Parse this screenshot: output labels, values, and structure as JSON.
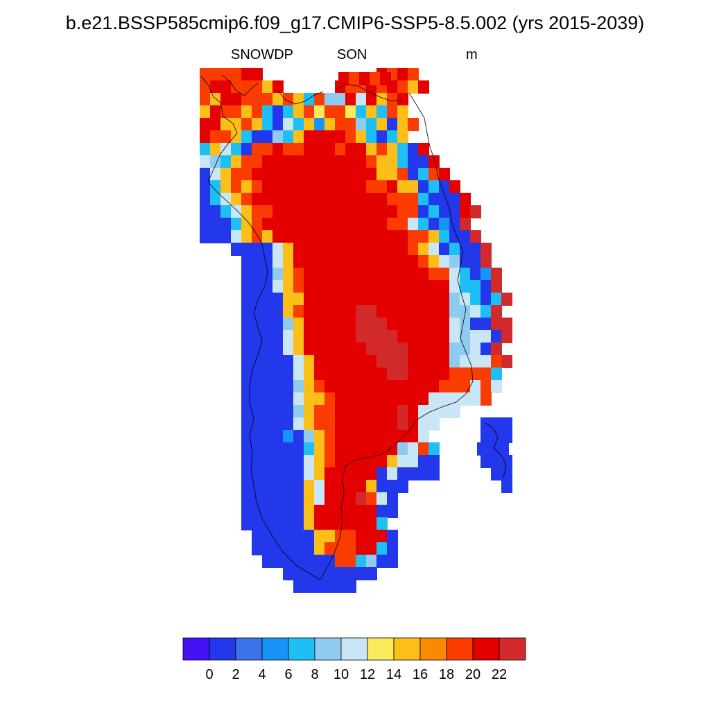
{
  "title": "b.e21.BSSP585cmip6.f09_g17.CMIP6-SSP5-8.5.002 (yrs 2015-2039)",
  "subtitle_left": "SNOWDP",
  "subtitle_center": "SON",
  "subtitle_right": "m",
  "colorbar": {
    "colors": [
      "#4412f4",
      "#2238ea",
      "#3b74e8",
      "#1893f8",
      "#1dbff4",
      "#8ecbee",
      "#c9e6f6",
      "#fbea59",
      "#fbbf18",
      "#fb8a00",
      "#fb3c00",
      "#e50000",
      "#d22a2a"
    ],
    "labels": [
      "0",
      "2",
      "4",
      "6",
      "8",
      "10",
      "12",
      "14",
      "16",
      "18",
      "20",
      "22"
    ]
  },
  "map": {
    "projection": "polar stereographic",
    "region": "Greenland",
    "coastline_color": "#000000"
  }
}
